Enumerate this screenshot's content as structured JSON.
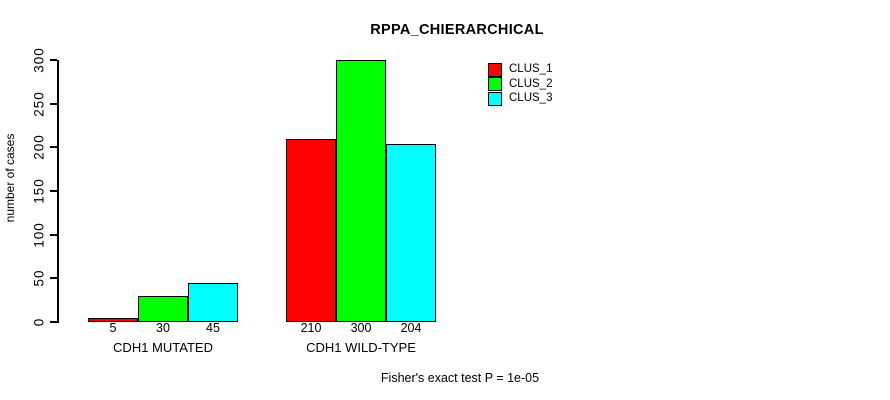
{
  "title": "RPPA_CHIERARCHICAL",
  "footnote": "Fisher's exact test P = 1e-05",
  "legend": [
    {
      "label": "CLUS_1",
      "color": "#FF0000"
    },
    {
      "label": "CLUS_2",
      "color": "#00FF00"
    },
    {
      "label": "CLUS_3",
      "color": "#00FFFF"
    }
  ],
  "chart_data": {
    "type": "bar",
    "title": "RPPA_CHIERARCHICAL",
    "xlabel": "",
    "ylabel": "number of cases",
    "ylim": [
      0,
      300
    ],
    "yticks": [
      0,
      50,
      100,
      150,
      200,
      250,
      300
    ],
    "grid": false,
    "legend_position": "inside-top-right",
    "categories": [
      "CDH1 MUTATED",
      "CDH1 WILD-TYPE"
    ],
    "series": [
      {
        "name": "CLUS_1",
        "color": "#FF0000",
        "values": [
          5,
          210
        ]
      },
      {
        "name": "CLUS_2",
        "color": "#00FF00",
        "values": [
          30,
          300
        ]
      },
      {
        "name": "CLUS_3",
        "color": "#00FFFF",
        "values": [
          45,
          204
        ]
      }
    ],
    "bar_value_labels": [
      [
        "5",
        "30",
        "45"
      ],
      [
        "210",
        "300",
        "204"
      ]
    ],
    "annotation": "Fisher's exact test P = 1e-05"
  }
}
